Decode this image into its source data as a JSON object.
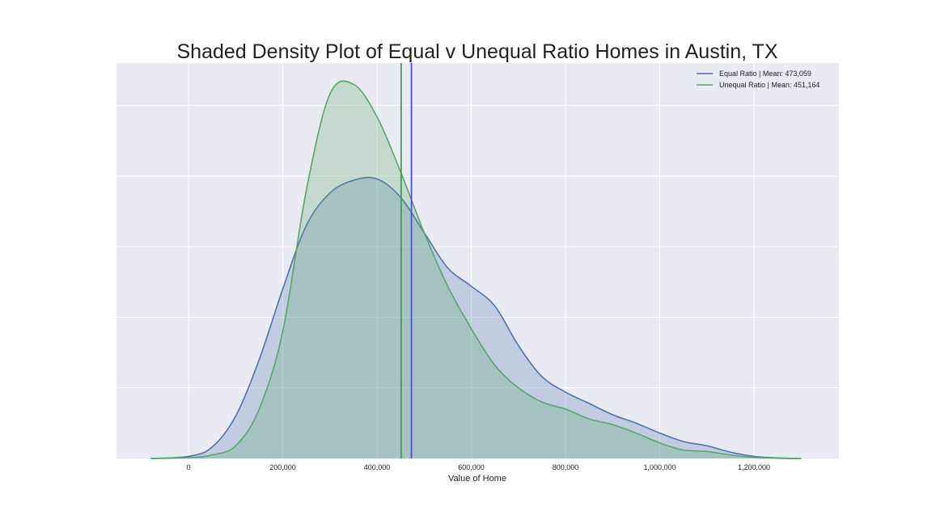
{
  "chart_data": {
    "type": "area",
    "title": "Shaded Density Plot of Equal v Unequal Ratio Homes in Austin, TX",
    "xlabel": "Value of Home",
    "ylabel": "",
    "xlim": [
      -250000,
      1300000
    ],
    "ylim": [
      0,
      2.8
    ],
    "x_ticks": [
      0,
      200000,
      400000,
      600000,
      800000,
      1000000,
      1200000
    ],
    "x_tick_labels": [
      "0",
      "200,000",
      "400,000",
      "600,000",
      "800,000",
      "1,000,000",
      "1,200,000"
    ],
    "y_gridlines": [
      0.5,
      1.0,
      1.5,
      2.0,
      2.5
    ],
    "grid": true,
    "legend_position": "top-right",
    "series": [
      {
        "name": "Equal Ratio | Mean: 473,059",
        "color": "#4c72b0",
        "fill": "#c1cae5",
        "mean": 473059,
        "x": [
          -80000,
          0,
          50000,
          100000,
          150000,
          200000,
          250000,
          300000,
          350000,
          400000,
          450000,
          500000,
          550000,
          600000,
          650000,
          700000,
          750000,
          800000,
          850000,
          900000,
          950000,
          1000000,
          1050000,
          1100000,
          1150000,
          1200000,
          1250000,
          1300000
        ],
        "y": [
          0.0,
          0.015,
          0.08,
          0.3,
          0.7,
          1.2,
          1.65,
          1.88,
          1.97,
          1.98,
          1.85,
          1.6,
          1.35,
          1.22,
          1.08,
          0.8,
          0.58,
          0.47,
          0.39,
          0.31,
          0.25,
          0.18,
          0.12,
          0.09,
          0.045,
          0.015,
          0.004,
          0.0
        ]
      },
      {
        "name": "Unequal Ratio | Mean: 451,164",
        "color": "#55a868",
        "fill": "#bcd9c8",
        "mean": 451164,
        "x": [
          -80000,
          0,
          50000,
          100000,
          150000,
          200000,
          250000,
          300000,
          350000,
          400000,
          450000,
          500000,
          550000,
          600000,
          650000,
          700000,
          750000,
          800000,
          850000,
          900000,
          950000,
          1000000,
          1050000,
          1100000,
          1150000,
          1200000,
          1250000,
          1300000
        ],
        "y": [
          0.0,
          0.006,
          0.025,
          0.09,
          0.35,
          0.9,
          1.9,
          2.58,
          2.65,
          2.42,
          2.03,
          1.6,
          1.22,
          0.92,
          0.66,
          0.5,
          0.4,
          0.35,
          0.28,
          0.24,
          0.18,
          0.11,
          0.06,
          0.05,
          0.025,
          0.008,
          0.002,
          0.0
        ]
      }
    ]
  }
}
